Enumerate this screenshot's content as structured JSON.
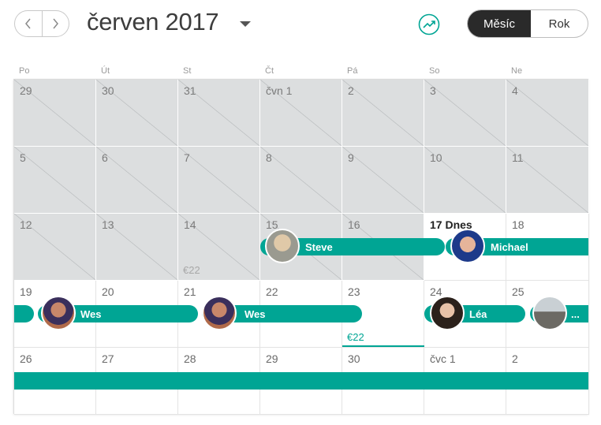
{
  "header": {
    "title": "červen 2017",
    "prev_icon": "chevron-left-icon",
    "next_icon": "chevron-right-icon",
    "stats_icon": "trend-chart-icon",
    "view_toggle": {
      "month": "Měsíc",
      "year": "Rok",
      "selected": "Měsíc"
    }
  },
  "weekdays": [
    "Po",
    "Út",
    "St",
    "Čt",
    "Pá",
    "So",
    "Ne"
  ],
  "weeks": [
    [
      "29",
      "30",
      "31",
      "čvn 1",
      "2",
      "3",
      "4"
    ],
    [
      "5",
      "6",
      "7",
      "8",
      "9",
      "10",
      "11"
    ],
    [
      "12",
      "13",
      "14",
      "15",
      "16",
      "17 Dnes",
      "18"
    ],
    [
      "19",
      "20",
      "21",
      "22",
      "23",
      "24",
      "25"
    ],
    [
      "26",
      "27",
      "28",
      "29",
      "30",
      "čvc 1",
      "2"
    ]
  ],
  "prices": {
    "jun14": "€22",
    "jun23": "€22"
  },
  "reservations": {
    "steve": "Steve",
    "michael": "Michael",
    "wes1": "Wes",
    "wes2": "Wes",
    "lea": "Léa",
    "more": "..."
  },
  "colors": {
    "accent": "#00a594",
    "past_day": "#dcdedf",
    "active_toggle": "#2a2a2a"
  }
}
